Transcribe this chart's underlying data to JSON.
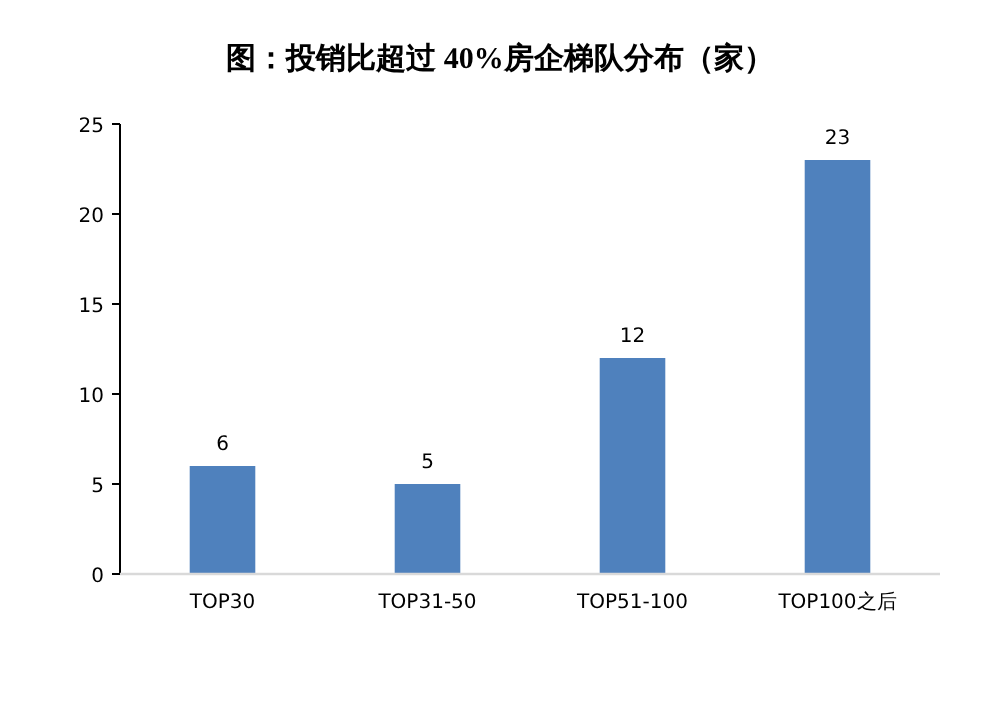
{
  "chart_data": {
    "type": "bar",
    "title": "图：投销比超过 40%房企梯队分布（家）",
    "categories": [
      "TOP30",
      "TOP31-50",
      "TOP51-100",
      "TOP100之后"
    ],
    "values": [
      6,
      5,
      12,
      23
    ],
    "color": "#4f81bd",
    "ylim": [
      0,
      25
    ],
    "yticks": [
      0,
      5,
      10,
      15,
      20,
      25
    ],
    "grid": false,
    "data_labels": true
  }
}
